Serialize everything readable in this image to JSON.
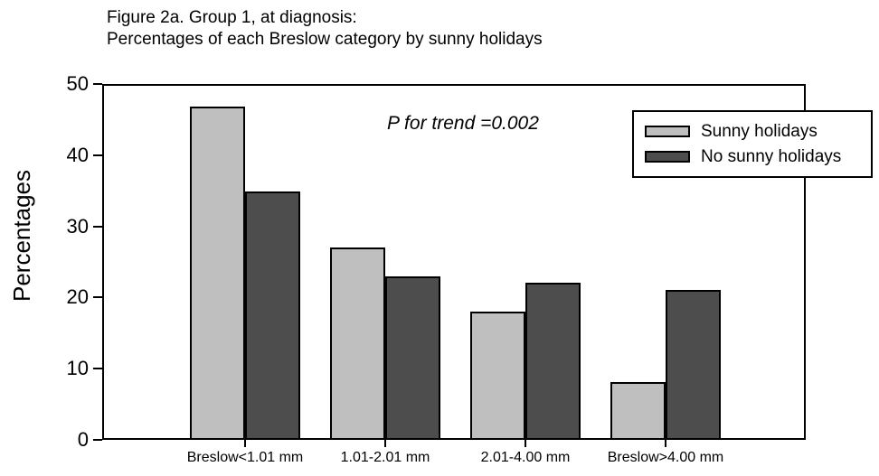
{
  "title": {
    "line1": "Figure 2a. Group 1, at diagnosis:",
    "line2": "Percentages of each Breslow category by sunny holidays"
  },
  "chart_data": {
    "type": "bar",
    "title": "Figure 2a. Group 1, at diagnosis: Percentages of each Breslow category by sunny holidays",
    "categories": [
      "Breslow<1.01 mm",
      "1.01-2.01 mm",
      "2.01-4.00 mm",
      "Breslow>4.00 mm"
    ],
    "series": [
      {
        "name": "Sunny holidays",
        "color": "#bfbfbf",
        "values": [
          47,
          27,
          18,
          8
        ]
      },
      {
        "name": "No sunny holidays",
        "color": "#4d4d4d",
        "values": [
          35,
          23,
          22,
          21
        ]
      }
    ],
    "xlabel": "",
    "ylabel": "Percentages",
    "ylim": [
      0,
      50
    ],
    "yticks": [
      0,
      10,
      20,
      30,
      40,
      50
    ],
    "grid": false,
    "legend_position": "top-right",
    "annotation": "P for trend =0.002"
  },
  "colors": {
    "bar_light": "#bfbfbf",
    "bar_dark": "#4d4d4d",
    "axis_and_borders": "#000000",
    "background": "#ffffff"
  }
}
